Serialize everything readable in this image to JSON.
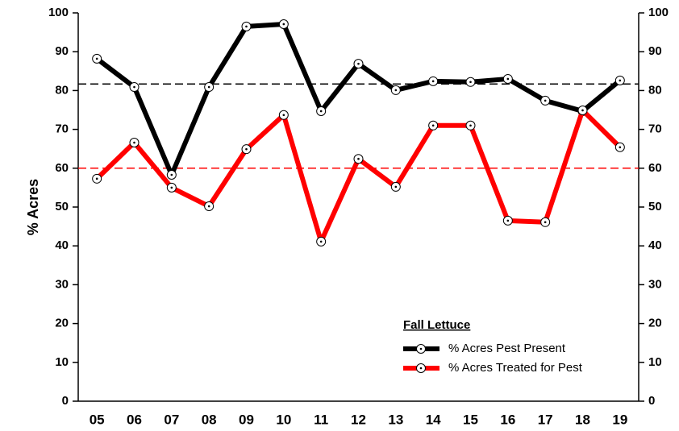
{
  "chart_data": {
    "type": "line",
    "y_label": "% Acres",
    "legend_title": "Fall Lettuce",
    "categories": [
      "05",
      "06",
      "07",
      "08",
      "09",
      "10",
      "11",
      "12",
      "13",
      "14",
      "15",
      "16",
      "17",
      "18",
      "19"
    ],
    "series": [
      {
        "name": "% Acres Pest Present",
        "color": "#000000",
        "values": [
          88.2,
          80.9,
          58.3,
          80.9,
          96.5,
          97.1,
          74.7,
          86.9,
          80.1,
          82.4,
          82.2,
          83.0,
          77.4,
          74.7,
          82.6
        ]
      },
      {
        "name": "% Acres Treated for Pest",
        "color": "#ff0000",
        "values": [
          57.3,
          66.6,
          55.0,
          50.2,
          64.9,
          73.7,
          41.1,
          62.4,
          55.2,
          71.0,
          71.0,
          46.5,
          46.1,
          74.9,
          65.4
        ]
      }
    ],
    "reference_lines": [
      {
        "value": 81.7,
        "color": "#000000"
      },
      {
        "value": 60.0,
        "color": "#ff0000"
      }
    ],
    "ylim": [
      0,
      100
    ],
    "yticks": [
      0,
      10,
      20,
      30,
      40,
      50,
      60,
      70,
      80,
      90,
      100
    ],
    "y2lim": [
      0,
      100
    ],
    "y2ticks": [
      0,
      10,
      20,
      30,
      40,
      50,
      60,
      70,
      80,
      90,
      100
    ],
    "legend": "lower right"
  }
}
